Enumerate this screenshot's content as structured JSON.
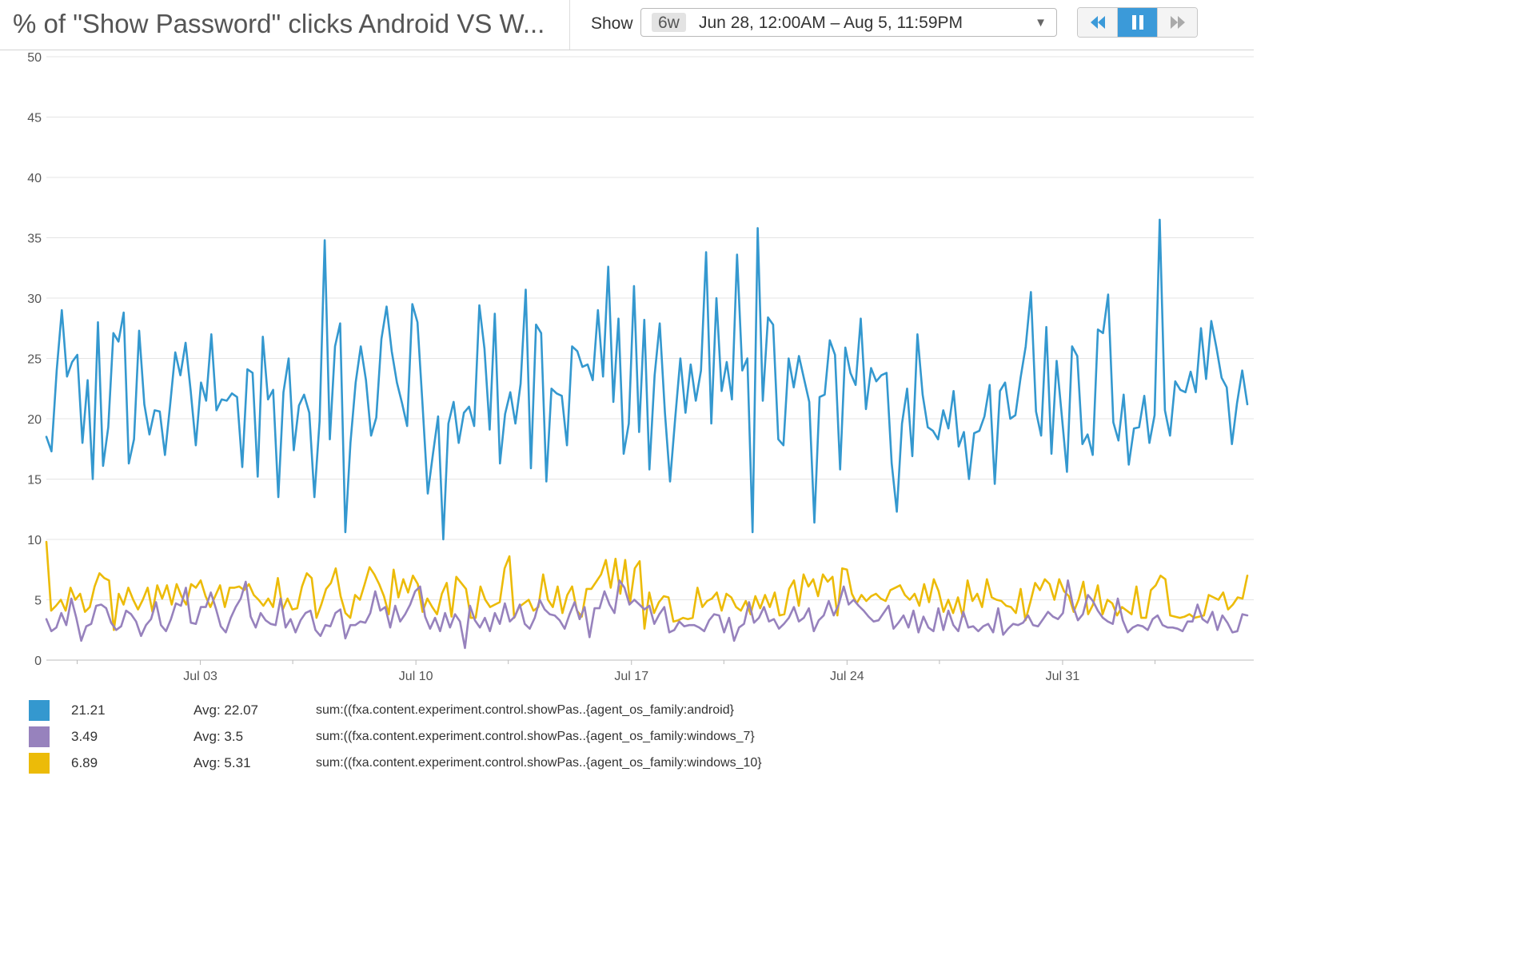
{
  "header": {
    "title": "% of \"Show Password\" clicks Android VS W...",
    "show_label": "Show",
    "range_badge": "6w",
    "range_text": "Jun 28, 12:00AM – Aug 5, 11:59PM",
    "caret": "▼"
  },
  "playback": {
    "rewind_icon": "rewind-icon",
    "pause_icon": "pause-icon",
    "forward_icon": "fast-forward-icon"
  },
  "chart_data": {
    "type": "line",
    "title": "% of \"Show Password\" clicks Android VS W...",
    "xlabel": "",
    "ylabel": "",
    "ylim": [
      0,
      50
    ],
    "yticks": [
      0,
      5,
      10,
      15,
      20,
      25,
      30,
      35,
      40,
      45,
      50
    ],
    "xlim": [
      "2018-06-28T00:00",
      "2018-08-05T23:59"
    ],
    "xticks": [
      {
        "date": "2018-07-03",
        "label": "Jul 03"
      },
      {
        "date": "2018-07-10",
        "label": "Jul 10"
      },
      {
        "date": "2018-07-17",
        "label": "Jul 17"
      },
      {
        "date": "2018-07-24",
        "label": "Jul 24"
      },
      {
        "date": "2018-07-31",
        "label": "Jul 31"
      }
    ],
    "minor_xticks": [
      "2018-06-29",
      "2018-07-06",
      "2018-07-13",
      "2018-07-20",
      "2018-07-27",
      "2018-08-03"
    ],
    "grid": true,
    "series": [
      {
        "name": "sum:((fxa.content.experiment.control.showPas..{agent_os_family:android}",
        "color": "#3498cf",
        "values": [
          18.5,
          17.3,
          24.0,
          29.0,
          23.5,
          24.7,
          25.3,
          18.0,
          23.2,
          15.0,
          28.0,
          16.1,
          19.3,
          27.1,
          26.4,
          28.8,
          16.3,
          18.3,
          27.3,
          21.2,
          18.7,
          20.7,
          20.6,
          17.0,
          21.1,
          25.5,
          23.6,
          26.3,
          22.3,
          17.8,
          23.0,
          21.5,
          27.0,
          20.7,
          21.6,
          21.5,
          22.1,
          21.8,
          16.0,
          24.1,
          23.8,
          15.2,
          26.8,
          21.6,
          22.4,
          13.5,
          22.2,
          25.0,
          17.4,
          21.1,
          22.0,
          20.5,
          13.5,
          19.8,
          34.8,
          18.3,
          26.0,
          27.9,
          10.6,
          18.0,
          23.0,
          26.0,
          23.2,
          18.6,
          20.1,
          26.6,
          29.3,
          25.6,
          23.0,
          21.3,
          19.4,
          29.5,
          28.0,
          21.0,
          13.8,
          17.1,
          20.2,
          10.0,
          19.6,
          21.4,
          18.0,
          20.5,
          21.0,
          19.4,
          29.4,
          25.8,
          19.1,
          28.7,
          16.3,
          20.4,
          22.2,
          19.6,
          22.9,
          30.7,
          15.9,
          27.8,
          27.1,
          14.8,
          22.5,
          22.1,
          21.9,
          17.8,
          26.0,
          25.6,
          24.3,
          24.5,
          23.2,
          29.0,
          23.5,
          32.6,
          21.4,
          28.3,
          17.1,
          19.6,
          31.0,
          18.9,
          28.2,
          15.8,
          23.6,
          27.9,
          20.5,
          14.8,
          20.1,
          25.0,
          20.5,
          24.5,
          21.5,
          24.0,
          33.8,
          19.6,
          30.0,
          22.3,
          24.7,
          21.6,
          33.6,
          24.0,
          25.0,
          10.6,
          35.8,
          21.5,
          28.4,
          27.8,
          18.3,
          17.8,
          25.0,
          22.6,
          25.2,
          23.3,
          21.4,
          11.4,
          21.8,
          22.0,
          26.5,
          25.3,
          15.8,
          25.9,
          23.8,
          22.8,
          28.3,
          20.8,
          24.2,
          23.1,
          23.6,
          23.8,
          16.3,
          12.3,
          19.6,
          22.5,
          16.9,
          27.0,
          22.0,
          19.3,
          19.0,
          18.3,
          20.7,
          19.2,
          22.3,
          17.7,
          18.9,
          15.0,
          18.8,
          19.0,
          20.2,
          22.8,
          14.6,
          22.3,
          23.0,
          20.0,
          20.3,
          23.4,
          26.0,
          30.5,
          20.6,
          18.6,
          27.6,
          17.1,
          24.8,
          20.3,
          15.6,
          26.0,
          25.2,
          17.9,
          18.7,
          17.0,
          27.4,
          27.1,
          30.3,
          19.7,
          18.2,
          22.0,
          16.2,
          19.2,
          19.3,
          21.9,
          18.0,
          20.3,
          36.5,
          20.7,
          18.6,
          23.1,
          22.4,
          22.2,
          23.9,
          22.2,
          27.5,
          23.3,
          28.1,
          25.9,
          23.4,
          22.6,
          17.9,
          21.3,
          24.0,
          21.2
        ]
      },
      {
        "name": "sum:((fxa.content.experiment.control.showPas..{agent_os_family:windows_7}",
        "color": "#9782bd",
        "values": [
          3.4,
          2.4,
          2.7,
          3.9,
          2.9,
          5.1,
          3.5,
          1.6,
          2.8,
          3.0,
          4.5,
          4.6,
          4.3,
          3.1,
          2.5,
          2.8,
          4.1,
          3.8,
          3.2,
          2.0,
          2.9,
          3.4,
          4.8,
          2.9,
          2.4,
          3.4,
          4.7,
          4.5,
          6.0,
          3.1,
          3.0,
          4.4,
          4.4,
          5.6,
          4.3,
          2.8,
          2.3,
          3.5,
          4.4,
          5.1,
          6.5,
          3.6,
          2.7,
          3.9,
          3.3,
          3.0,
          2.9,
          5.1,
          2.7,
          3.4,
          2.3,
          3.3,
          3.9,
          4.1,
          2.5,
          2.0,
          2.9,
          2.8,
          3.9,
          4.2,
          1.8,
          2.9,
          2.9,
          3.2,
          3.1,
          3.9,
          5.7,
          4.1,
          4.4,
          2.7,
          4.5,
          3.2,
          3.8,
          4.6,
          5.7,
          6.1,
          3.6,
          2.6,
          3.5,
          2.4,
          3.9,
          2.7,
          3.8,
          3.2,
          1.0,
          4.5,
          3.3,
          2.7,
          3.5,
          2.4,
          3.9,
          3.0,
          4.7,
          3.2,
          3.6,
          4.6,
          3.0,
          2.6,
          3.5,
          5.0,
          4.2,
          3.8,
          3.7,
          3.3,
          2.6,
          3.8,
          4.8,
          3.4,
          4.4,
          1.9,
          4.3,
          4.3,
          5.7,
          4.6,
          3.9,
          6.6,
          6.0,
          4.6,
          5.0,
          4.6,
          4.2,
          4.5,
          3.0,
          3.8,
          4.4,
          2.3,
          2.5,
          3.2,
          2.8,
          2.9,
          2.9,
          2.7,
          2.4,
          3.3,
          3.8,
          3.7,
          2.3,
          3.5,
          1.6,
          2.7,
          3.0,
          4.8,
          3.1,
          3.5,
          4.4,
          3.2,
          3.4,
          2.6,
          3.0,
          3.5,
          4.4,
          3.2,
          3.5,
          4.3,
          2.4,
          3.3,
          3.7,
          4.9,
          3.7,
          4.6,
          6.1,
          4.6,
          5.0,
          4.5,
          4.1,
          3.6,
          3.2,
          3.3,
          3.9,
          4.5,
          2.6,
          3.1,
          3.7,
          2.7,
          4.1,
          2.3,
          3.6,
          2.7,
          2.4,
          4.3,
          2.5,
          4.1,
          2.9,
          2.4,
          4.0,
          2.7,
          2.8,
          2.4,
          2.8,
          3.0,
          2.3,
          4.3,
          2.1,
          2.6,
          3.0,
          2.9,
          3.1,
          3.7,
          2.9,
          2.8,
          3.4,
          4.0,
          3.6,
          3.4,
          3.9,
          6.6,
          4.5,
          3.3,
          3.8,
          5.4,
          4.9,
          4.1,
          3.5,
          3.2,
          3.0,
          5.1,
          3.3,
          2.3,
          2.7,
          2.9,
          2.8,
          2.5,
          3.4,
          3.7,
          2.9,
          2.7,
          2.7,
          2.6,
          2.4,
          3.2,
          3.2,
          4.6,
          3.4,
          3.1,
          4.0,
          2.5,
          3.7,
          3.1,
          2.3,
          2.4,
          3.8,
          3.7
        ]
      },
      {
        "name": "sum:((fxa.content.experiment.control.showPas..{agent_os_family:windows_10}",
        "color": "#ecbb08",
        "values": [
          9.8,
          4.1,
          4.5,
          5.0,
          4.1,
          6.0,
          5.0,
          5.5,
          4.0,
          4.4,
          6.1,
          7.2,
          6.8,
          6.6,
          2.5,
          5.5,
          4.6,
          6.0,
          5.0,
          4.2,
          5.0,
          6.0,
          4.0,
          6.2,
          5.1,
          6.2,
          4.6,
          6.3,
          5.3,
          4.6,
          6.3,
          6.0,
          6.6,
          5.3,
          4.4,
          5.3,
          6.2,
          4.4,
          6.0,
          6.0,
          6.1,
          5.8,
          6.3,
          5.4,
          5.0,
          4.5,
          5.1,
          4.4,
          6.8,
          4.2,
          5.1,
          4.2,
          4.3,
          6.1,
          7.2,
          6.8,
          3.5,
          4.6,
          5.9,
          6.4,
          7.6,
          5.3,
          3.9,
          3.5,
          5.4,
          5.0,
          6.3,
          7.7,
          7.1,
          6.3,
          5.3,
          3.8,
          7.5,
          5.2,
          6.7,
          5.6,
          7.0,
          6.3,
          4.0,
          5.1,
          4.4,
          3.8,
          5.5,
          6.4,
          3.6,
          6.9,
          6.4,
          5.9,
          3.5,
          3.5,
          6.1,
          5.0,
          4.4,
          4.6,
          4.8,
          7.6,
          8.6,
          3.5,
          4.4,
          4.7,
          5.0,
          4.1,
          4.4,
          7.1,
          5.0,
          4.4,
          6.1,
          3.9,
          5.4,
          6.1,
          4.1,
          3.6,
          5.9,
          5.9,
          6.5,
          7.1,
          8.3,
          6.0,
          8.4,
          5.5,
          8.3,
          4.7,
          7.6,
          8.2,
          2.6,
          5.6,
          3.9,
          4.8,
          5.3,
          5.2,
          3.2,
          3.3,
          3.5,
          3.4,
          3.5,
          6.0,
          4.4,
          4.9,
          5.1,
          5.6,
          4.1,
          5.5,
          5.2,
          4.4,
          4.1,
          4.9,
          3.8,
          5.3,
          4.3,
          5.4,
          4.4,
          5.6,
          3.7,
          3.8,
          5.9,
          6.6,
          4.5,
          7.1,
          6.1,
          6.7,
          5.3,
          7.1,
          6.5,
          6.9,
          3.7,
          7.6,
          7.5,
          5.5,
          4.7,
          5.4,
          4.9,
          5.3,
          5.5,
          5.1,
          4.9,
          5.8,
          6.0,
          6.2,
          5.4,
          5.0,
          5.5,
          4.5,
          6.3,
          4.8,
          6.7,
          5.7,
          4.0,
          5.0,
          3.9,
          5.2,
          3.6,
          6.6,
          4.9,
          5.5,
          4.4,
          6.7,
          5.2,
          5.0,
          4.9,
          4.5,
          4.4,
          3.9,
          5.9,
          3.3,
          4.8,
          6.4,
          5.8,
          6.7,
          6.3,
          5.0,
          6.7,
          5.7,
          5.3,
          4.0,
          5.0,
          6.5,
          3.8,
          4.6,
          6.2,
          3.8,
          5.0,
          4.7,
          3.7,
          4.4,
          4.1,
          3.8,
          6.1,
          3.5,
          3.5,
          5.8,
          6.2,
          7.0,
          6.7,
          3.7,
          3.6,
          3.5,
          3.6,
          3.8,
          3.5,
          3.6,
          3.7,
          5.4,
          5.2,
          5.0,
          5.6,
          4.2,
          4.6,
          5.2,
          5.1,
          7.0
        ]
      }
    ]
  },
  "legend": [
    {
      "value": "21.21",
      "avg": "Avg: 22.07",
      "query": "sum:((fxa.content.experiment.control.showPas..{agent_os_family:android}",
      "color": "#3498cf"
    },
    {
      "value": "3.49",
      "avg": "Avg: 3.5",
      "query": "sum:((fxa.content.experiment.control.showPas..{agent_os_family:windows_7}",
      "color": "#9782bd"
    },
    {
      "value": "6.89",
      "avg": "Avg: 5.31",
      "query": "sum:((fxa.content.experiment.control.showPas..{agent_os_family:windows_10}",
      "color": "#ecbb08"
    }
  ]
}
